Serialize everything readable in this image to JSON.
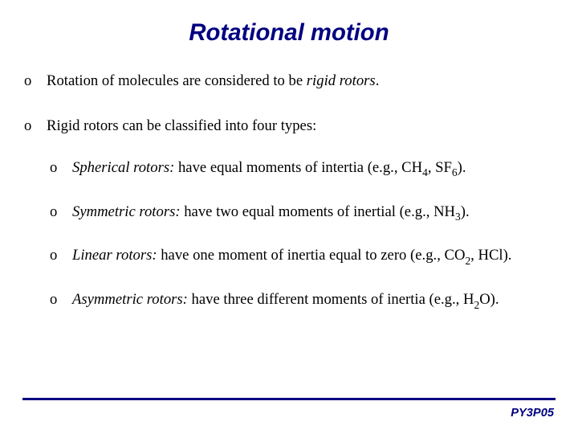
{
  "colors": {
    "title": "#000080",
    "body_text": "#000000",
    "rule": "#000080",
    "footer": "#000080",
    "background": "#ffffff"
  },
  "fonts": {
    "title_family": "Arial",
    "title_size_pt": 22,
    "title_weight": "bold",
    "title_style": "italic",
    "body_family": "Times New Roman",
    "body_size_pt": 14,
    "footer_family": "Arial",
    "footer_size_pt": 11,
    "footer_weight": "bold",
    "footer_style": "italic"
  },
  "title": "Rotational motion",
  "footer": "PY3P05",
  "bullets": {
    "b1_pre": "Rotation of molecules are considered to be ",
    "b1_em": "rigid rotors",
    "b1_post": ".",
    "b2": "Rigid rotors can be classified into four types:",
    "s1_em": "Spherical rotors:",
    "s1_rest": " have equal moments of intertia (e.g., CH",
    "s1_sub1": "4",
    "s1_mid": ", SF",
    "s1_sub2": "6",
    "s1_end": ").",
    "s2_em": "Symmetric rotors:",
    "s2_rest": " have two equal moments of inertial (e.g., NH",
    "s2_sub1": "3",
    "s2_end": ").",
    "s3_em": "Linear rotors:",
    "s3_rest": " have one moment of inertia equal to zero (e.g., CO",
    "s3_sub1": "2",
    "s3_end": ", HCl).",
    "s4_em": "Asymmetric rotors:",
    "s4_rest": " have three different moments of inertia (e.g., H",
    "s4_sub1": "2",
    "s4_end": "O)."
  }
}
